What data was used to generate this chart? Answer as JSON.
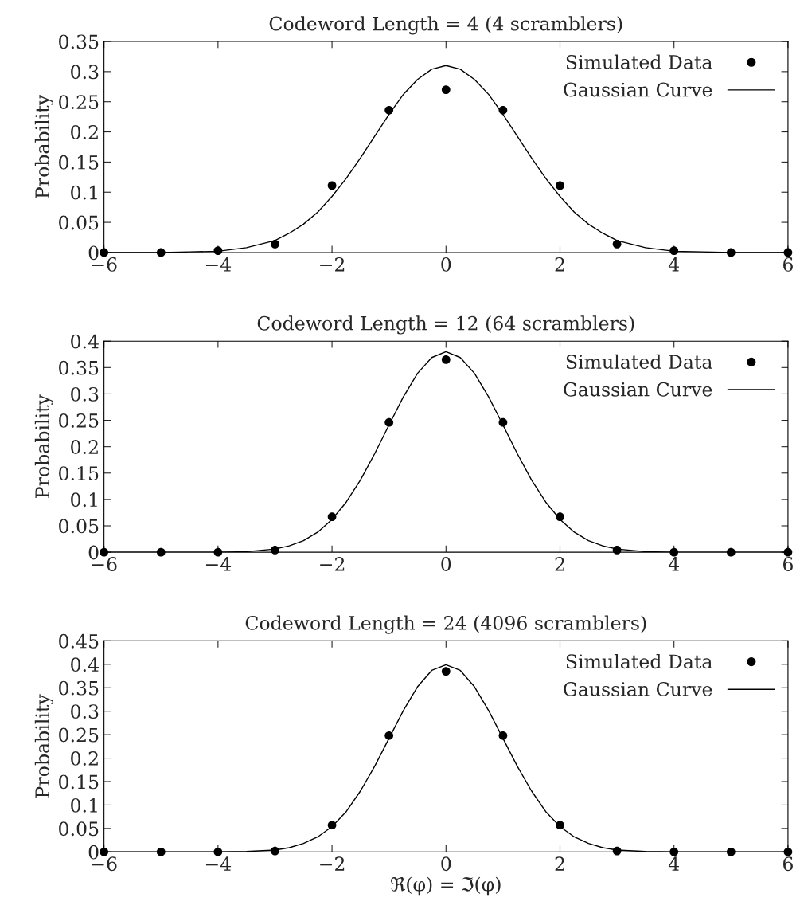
{
  "chart_data": [
    {
      "type": "scatter",
      "title": "Codeword Length = 4 (4 scramblers)",
      "ylabel": "Probability",
      "xlim": [
        -6,
        6
      ],
      "ylim": [
        0,
        0.35
      ],
      "xticks": [
        {
          "value": -6,
          "label": "−6"
        },
        {
          "value": -4,
          "label": "−4"
        },
        {
          "value": -2,
          "label": "−2"
        },
        0,
        2,
        4,
        6
      ],
      "yticks": [
        0,
        0.05,
        0.1,
        0.15,
        0.2,
        0.25,
        0.3,
        0.35
      ],
      "grid": false,
      "legend": "top right",
      "series": [
        {
          "name": "Simulated Data",
          "marker": "circle",
          "color": "#000000",
          "x": [
            -6,
            -5,
            -4,
            -3,
            -2,
            -1,
            0,
            1,
            2,
            3,
            4,
            5,
            6
          ],
          "values": [
            0,
            0,
            0.003,
            0.014,
            0.111,
            0.236,
            0.27,
            0.236,
            0.111,
            0.014,
            0.003,
            0,
            0
          ]
        },
        {
          "name": "Gaussian Curve",
          "type": "line",
          "marker": "none",
          "line_style": "solid",
          "color": "#000000",
          "x": [
            -6,
            -5,
            -4.5,
            -4,
            -3.5,
            -3,
            -2.75,
            -2.5,
            -2.25,
            -2,
            -1.75,
            -1.5,
            -1.25,
            -1,
            -0.75,
            -0.5,
            -0.25,
            0,
            0.25,
            0.5,
            0.75,
            1,
            1.25,
            1.5,
            1.75,
            2,
            2.25,
            2.5,
            2.75,
            3,
            3.5,
            4,
            4.5,
            5,
            6
          ],
          "values": [
            0,
            0,
            0.001,
            0.002,
            0.008,
            0.02,
            0.032,
            0.047,
            0.067,
            0.093,
            0.123,
            0.157,
            0.193,
            0.229,
            0.262,
            0.287,
            0.304,
            0.31,
            0.304,
            0.287,
            0.262,
            0.229,
            0.193,
            0.157,
            0.123,
            0.093,
            0.067,
            0.047,
            0.032,
            0.02,
            0.008,
            0.002,
            0.001,
            0,
            0
          ]
        }
      ]
    },
    {
      "type": "scatter",
      "title": "Codeword Length = 12 (64 scramblers)",
      "ylabel": "Probability",
      "xlim": [
        -6,
        6
      ],
      "ylim": [
        0,
        0.4
      ],
      "xticks": [
        {
          "value": -6,
          "label": "−6"
        },
        {
          "value": -4,
          "label": "−4"
        },
        {
          "value": -2,
          "label": "−2"
        },
        0,
        2,
        4,
        6
      ],
      "yticks": [
        0,
        0.05,
        0.1,
        0.15,
        0.2,
        0.25,
        0.3,
        0.35,
        0.4
      ],
      "grid": false,
      "legend": "top right",
      "series": [
        {
          "name": "Simulated Data",
          "marker": "circle",
          "color": "#000000",
          "x": [
            -6,
            -5,
            -4,
            -3,
            -2,
            -1,
            0,
            1,
            2,
            3,
            4,
            5,
            6
          ],
          "values": [
            0,
            0,
            0,
            0.004,
            0.067,
            0.246,
            0.365,
            0.246,
            0.067,
            0.004,
            0,
            0,
            0
          ]
        },
        {
          "name": "Gaussian Curve",
          "type": "line",
          "marker": "none",
          "line_style": "solid",
          "color": "#000000",
          "x": [
            -6,
            -5,
            -4,
            -3.5,
            -3,
            -2.75,
            -2.5,
            -2.25,
            -2,
            -1.75,
            -1.5,
            -1.25,
            -1,
            -0.75,
            -0.5,
            -0.25,
            0,
            0.25,
            0.5,
            0.75,
            1,
            1.25,
            1.5,
            1.75,
            2,
            2.25,
            2.5,
            2.75,
            3,
            3.5,
            4,
            5,
            6
          ],
          "values": [
            0,
            0,
            0,
            0.001,
            0.006,
            0.012,
            0.022,
            0.038,
            0.062,
            0.095,
            0.137,
            0.187,
            0.241,
            0.294,
            0.339,
            0.369,
            0.38,
            0.369,
            0.339,
            0.294,
            0.241,
            0.187,
            0.137,
            0.095,
            0.062,
            0.038,
            0.022,
            0.012,
            0.006,
            0.001,
            0,
            0,
            0
          ]
        }
      ]
    },
    {
      "type": "scatter",
      "title": "Codeword Length = 24 (4096 scramblers)",
      "ylabel": "Probability",
      "xlabel": "ℜ(φ) = ℑ(φ)",
      "xlim": [
        -6,
        6
      ],
      "ylim": [
        0,
        0.45
      ],
      "xticks": [
        {
          "value": -6,
          "label": "−6"
        },
        {
          "value": -4,
          "label": "−4"
        },
        {
          "value": -2,
          "label": "−2"
        },
        0,
        2,
        4,
        6
      ],
      "yticks": [
        0,
        0.05,
        0.1,
        0.15,
        0.2,
        0.25,
        0.3,
        0.35,
        0.4,
        0.45
      ],
      "grid": false,
      "legend": "top right",
      "series": [
        {
          "name": "Simulated Data",
          "marker": "circle",
          "color": "#000000",
          "x": [
            -6,
            -5,
            -4,
            -3,
            -2,
            -1,
            0,
            1,
            2,
            3,
            4,
            5,
            6
          ],
          "values": [
            0,
            0,
            0,
            0.002,
            0.057,
            0.248,
            0.385,
            0.248,
            0.057,
            0.002,
            0,
            0,
            0
          ]
        },
        {
          "name": "Gaussian Curve",
          "type": "line",
          "marker": "none",
          "line_style": "solid",
          "color": "#000000",
          "x": [
            -6,
            -5,
            -4,
            -3.5,
            -3,
            -2.75,
            -2.5,
            -2.25,
            -2,
            -1.75,
            -1.5,
            -1.25,
            -1,
            -0.75,
            -0.5,
            -0.25,
            0,
            0.25,
            0.5,
            0.75,
            1,
            1.25,
            1.5,
            1.75,
            2,
            2.25,
            2.5,
            2.75,
            3,
            3.5,
            4,
            5,
            6
          ],
          "values": [
            0,
            0,
            0,
            0.001,
            0.004,
            0.009,
            0.018,
            0.032,
            0.054,
            0.086,
            0.13,
            0.183,
            0.242,
            0.301,
            0.352,
            0.387,
            0.399,
            0.387,
            0.352,
            0.301,
            0.242,
            0.183,
            0.13,
            0.086,
            0.054,
            0.032,
            0.018,
            0.009,
            0.004,
            0.001,
            0,
            0,
            0
          ]
        }
      ]
    }
  ]
}
